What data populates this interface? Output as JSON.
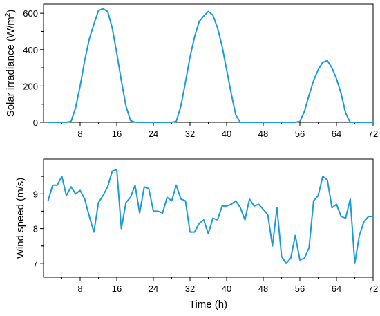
{
  "chart_data": [
    {
      "type": "line",
      "xlabel": "",
      "ylabel": "Solar irradiance (W/m²)",
      "ylabel_parts": {
        "main": "Solar irradiance (W/m",
        "sup": "2",
        "tail": ")"
      },
      "xlim": [
        0,
        72
      ],
      "ylim": [
        0,
        650
      ],
      "xticks": [
        8,
        16,
        24,
        32,
        40,
        48,
        56,
        64,
        72
      ],
      "yticks": [
        0,
        200,
        400,
        600
      ],
      "grid": false,
      "color": "#1a9bd8",
      "series": [
        {
          "x": [
            1,
            2,
            3,
            4,
            5,
            6,
            7,
            8,
            9,
            10,
            11,
            12,
            13,
            14,
            15,
            16,
            17,
            18,
            19,
            20,
            21,
            22,
            23,
            24,
            25,
            26,
            27,
            28,
            29,
            30,
            31,
            32,
            33,
            34,
            35,
            36,
            37,
            38,
            39,
            40,
            41,
            42,
            43,
            44,
            45,
            46,
            47,
            48,
            49,
            50,
            51,
            52,
            53,
            54,
            55,
            56,
            57,
            58,
            59,
            60,
            61,
            62,
            63,
            64,
            65,
            66,
            67,
            68,
            69,
            70,
            71,
            72
          ],
          "values": [
            0,
            0,
            0,
            0,
            0,
            5,
            80,
            200,
            340,
            460,
            540,
            615,
            625,
            610,
            520,
            380,
            230,
            90,
            10,
            0,
            0,
            0,
            0,
            0,
            0,
            0,
            0,
            0,
            5,
            90,
            220,
            360,
            470,
            555,
            585,
            610,
            590,
            520,
            420,
            290,
            160,
            40,
            0,
            0,
            0,
            0,
            0,
            0,
            0,
            0,
            0,
            0,
            0,
            0,
            0,
            5,
            60,
            150,
            230,
            290,
            330,
            340,
            300,
            240,
            160,
            50,
            0,
            0,
            0,
            0,
            0,
            0
          ]
        }
      ]
    },
    {
      "type": "line",
      "xlabel": "Time (h)",
      "ylabel": "Wind speed (m/s)",
      "xlim": [
        0,
        72
      ],
      "ylim": [
        6.6,
        10.0
      ],
      "xticks": [
        8,
        16,
        24,
        32,
        40,
        48,
        56,
        64,
        72
      ],
      "yticks": [
        7,
        8,
        9
      ],
      "grid": false,
      "color": "#1a9bd8",
      "series": [
        {
          "x": [
            1,
            2,
            3,
            4,
            5,
            6,
            7,
            8,
            9,
            10,
            11,
            12,
            13,
            14,
            15,
            16,
            17,
            18,
            19,
            20,
            21,
            22,
            23,
            24,
            25,
            26,
            27,
            28,
            29,
            30,
            31,
            32,
            33,
            34,
            35,
            36,
            37,
            38,
            39,
            40,
            41,
            42,
            43,
            44,
            45,
            46,
            47,
            48,
            49,
            50,
            51,
            52,
            53,
            54,
            55,
            56,
            57,
            58,
            59,
            60,
            61,
            62,
            63,
            64,
            65,
            66,
            67,
            68,
            69,
            70,
            71,
            72
          ],
          "values": [
            8.8,
            9.25,
            9.25,
            9.5,
            8.95,
            9.2,
            9.0,
            9.1,
            8.85,
            8.35,
            7.9,
            8.75,
            8.95,
            9.2,
            9.65,
            9.7,
            8.0,
            8.75,
            8.9,
            9.25,
            8.45,
            9.2,
            9.15,
            8.5,
            8.5,
            8.45,
            8.9,
            8.8,
            9.25,
            8.85,
            8.8,
            7.9,
            7.9,
            8.15,
            8.25,
            7.85,
            8.3,
            8.25,
            8.65,
            8.65,
            8.7,
            8.8,
            8.6,
            8.25,
            8.85,
            8.65,
            8.7,
            8.55,
            8.4,
            7.5,
            8.6,
            7.2,
            7.0,
            7.15,
            7.8,
            7.1,
            7.15,
            7.45,
            8.8,
            8.95,
            9.5,
            9.4,
            8.6,
            8.7,
            8.35,
            8.3,
            8.85,
            7.0,
            7.8,
            8.2,
            8.35,
            8.35
          ]
        }
      ]
    }
  ]
}
